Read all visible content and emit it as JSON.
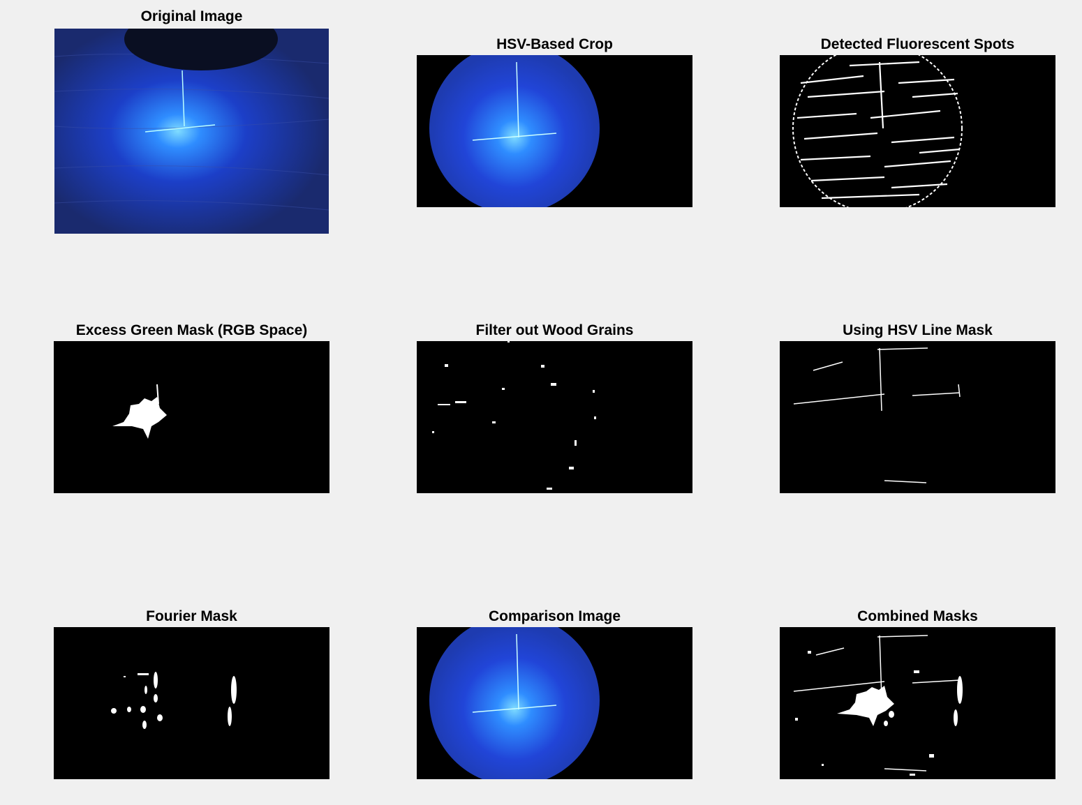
{
  "figure": {
    "background": "#f0f0f0",
    "panels": [
      {
        "id": "original",
        "title": "Original Image"
      },
      {
        "id": "hsv-crop",
        "title": "HSV-Based Crop"
      },
      {
        "id": "fluor-spots",
        "title": "Detected Fluorescent Spots"
      },
      {
        "id": "excess-green",
        "title": "Excess Green Mask (RGB Space)"
      },
      {
        "id": "wood-grain-filter",
        "title": "Filter out Wood Grains"
      },
      {
        "id": "hsv-line-mask",
        "title": "Using HSV Line Mask"
      },
      {
        "id": "fourier-mask",
        "title": "Fourier Mask"
      },
      {
        "id": "comparison",
        "title": "Comparison Image"
      },
      {
        "id": "combined",
        "title": "Combined Masks"
      }
    ]
  }
}
